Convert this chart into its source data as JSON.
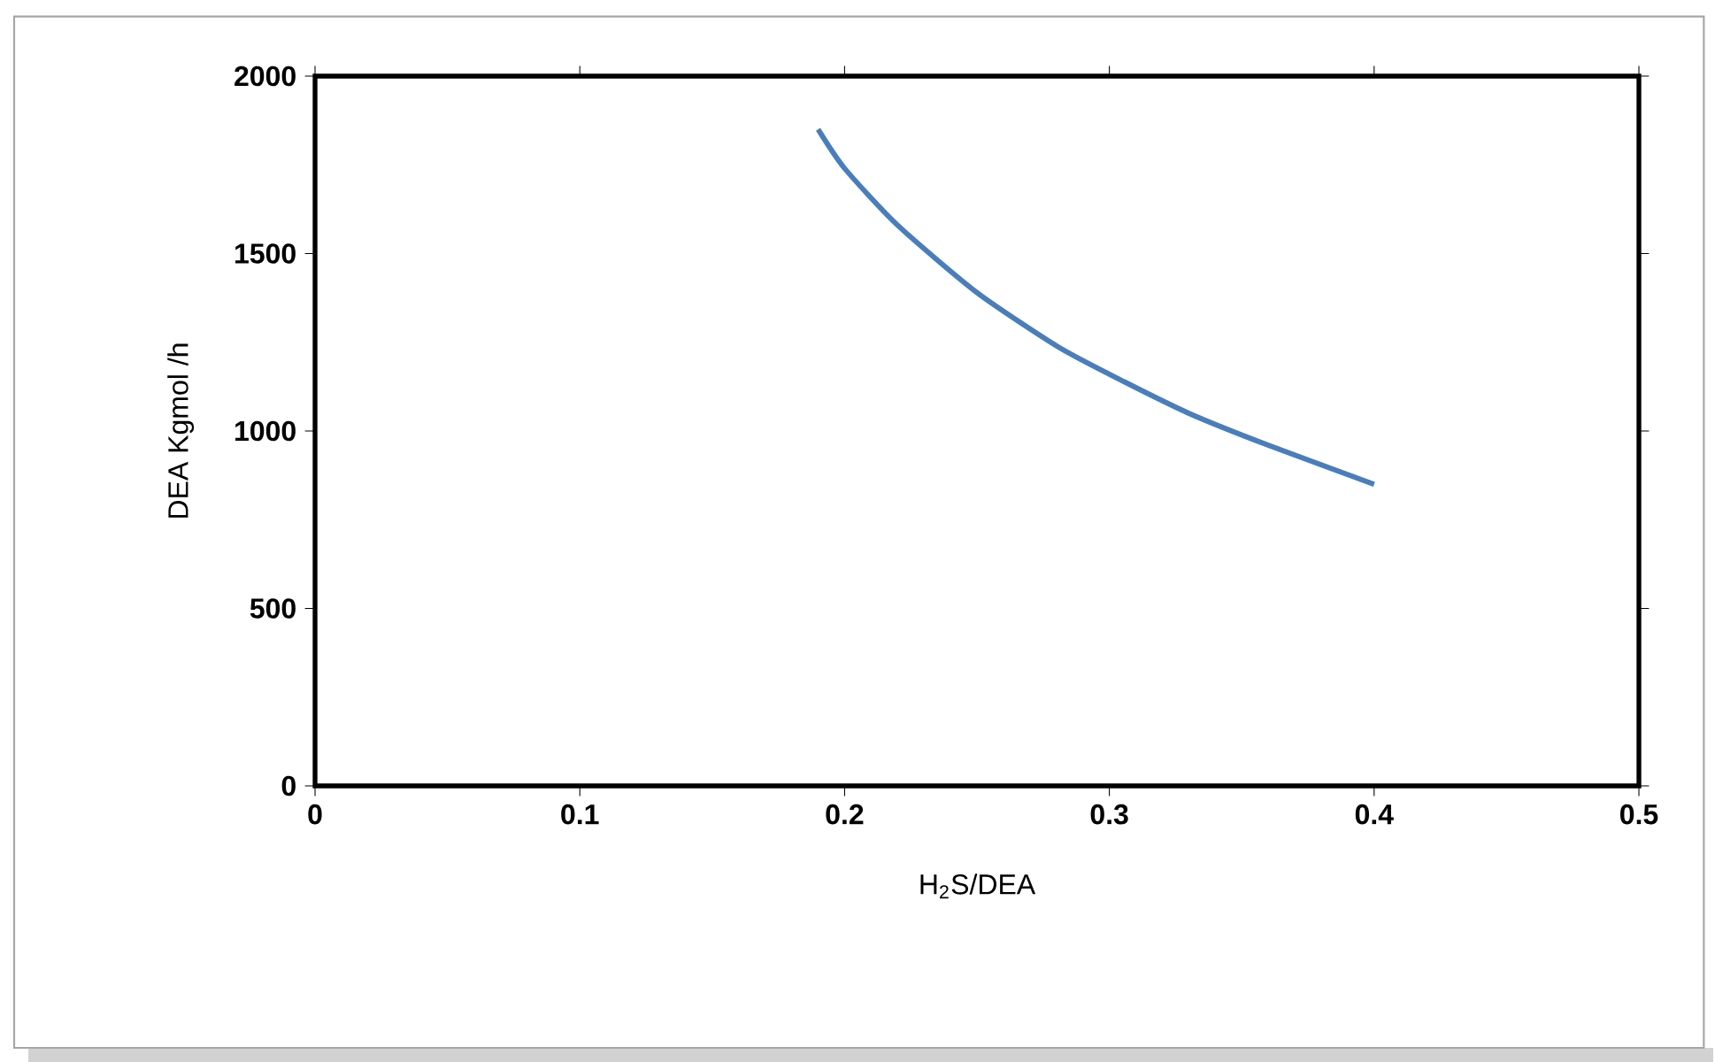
{
  "chart_data": {
    "type": "line",
    "xlabel": "H$_{2}$S/DEA",
    "ylabel": "DEA Kgmol /h",
    "x": [
      0.19,
      0.2,
      0.22,
      0.25,
      0.28,
      0.3,
      0.33,
      0.36,
      0.4
    ],
    "series": [
      {
        "color": "#4a7ebb",
        "values": [
          1850,
          1740,
          1580,
          1390,
          1240,
          1160,
          1050,
          960,
          850
        ]
      }
    ],
    "xlim": [
      0,
      0.5
    ],
    "ylim": [
      0,
      2000
    ],
    "xticks": [
      0,
      0.1,
      0.2,
      0.3,
      0.4,
      0.5
    ],
    "yticks": [
      0,
      500,
      1000,
      1500,
      2000
    ],
    "grid": false,
    "marker": "none",
    "line_style": "solid"
  }
}
